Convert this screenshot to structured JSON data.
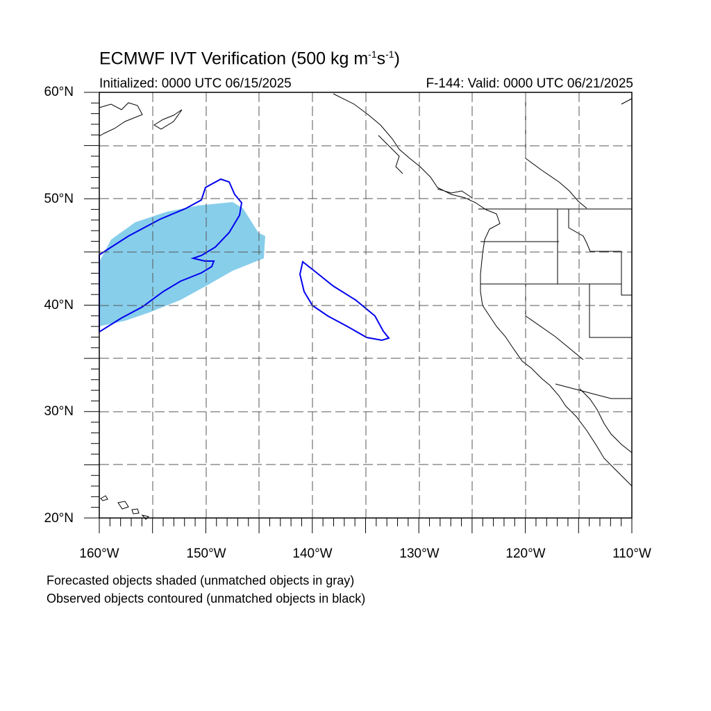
{
  "title": {
    "main": "ECMWF IVT Verification (500 kg m",
    "sup1": "-1",
    "mid": "s",
    "sup2": "-1",
    "end": ")"
  },
  "init_text": "Initialized: 0000 UTC 06/15/2025",
  "valid_text": "F-144: Valid: 0000 UTC 06/21/2025",
  "lat_labels": [
    "60°N",
    "50°N",
    "40°N",
    "30°N",
    "20°N"
  ],
  "lon_labels": [
    "160°W",
    "150°W",
    "140°W",
    "130°W",
    "120°W",
    "110°W"
  ],
  "legend": [
    "Forecasted objects shaded (unmatched objects in gray)",
    "Observed objects contoured (unmatched objects in black)"
  ],
  "map": {
    "lon_range": [
      -160,
      -110
    ],
    "lat_range": [
      20,
      60
    ],
    "gridlines": "dashed every 5°",
    "forecast_color": "#87ceeb",
    "observed_color": "#0000ee"
  }
}
